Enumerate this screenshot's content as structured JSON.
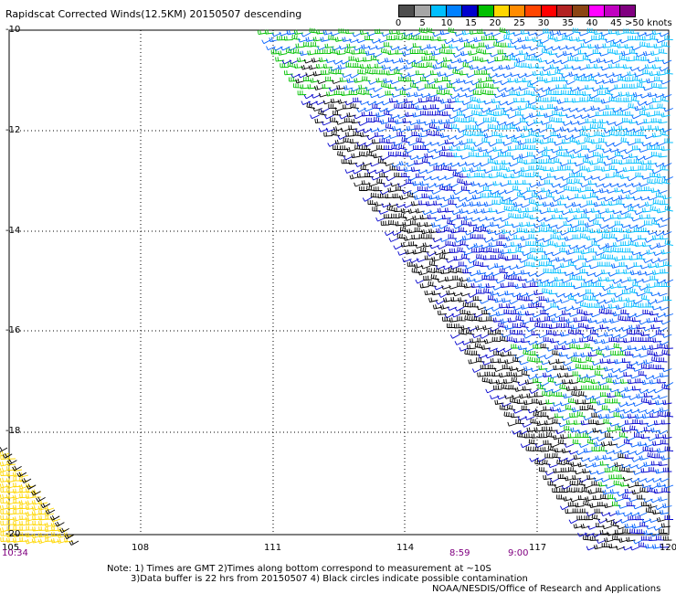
{
  "title": "Rapidscat Corrected Winds(12.5KM) 20150507 descending",
  "legend": {
    "colors": [
      "#4d4d4d",
      "#a6a6a6",
      "#00bfff",
      "#0080ff",
      "#0000cd",
      "#00c000",
      "#ffd700",
      "#ff8c00",
      "#ff4500",
      "#ff0000",
      "#b22222",
      "#8b4513",
      "#ff00ff",
      "#c000c0",
      "#800080"
    ],
    "labels": [
      "0",
      "5",
      "10",
      "15",
      "20",
      "25",
      "30",
      "35",
      "40",
      "45"
    ],
    "unit_label": ">50 knots"
  },
  "latitude_labels": [
    "-10",
    "-12",
    "-14",
    "-16",
    "-18",
    "-20"
  ],
  "longitude_labels": [
    "105",
    "108",
    "111",
    "114",
    "117",
    "120"
  ],
  "time_labels": [
    "10:34",
    "8:59",
    "9:00"
  ],
  "notes": [
    "Note: 1) Times are GMT 2)Times along bottom correspond to measurement at ~10S",
    "3)Data buffer is 22 hrs from 20150507 4) Black circles indicate possible contamination",
    "NOAA/NESDIS/Office of Research and Applications"
  ],
  "wind_colors": {
    "black": "#000000",
    "green": "#00c000",
    "blue": "#0000cd",
    "medium_blue": "#0060ff",
    "cyan": "#00bfff",
    "yellow": "#ffd700"
  }
}
